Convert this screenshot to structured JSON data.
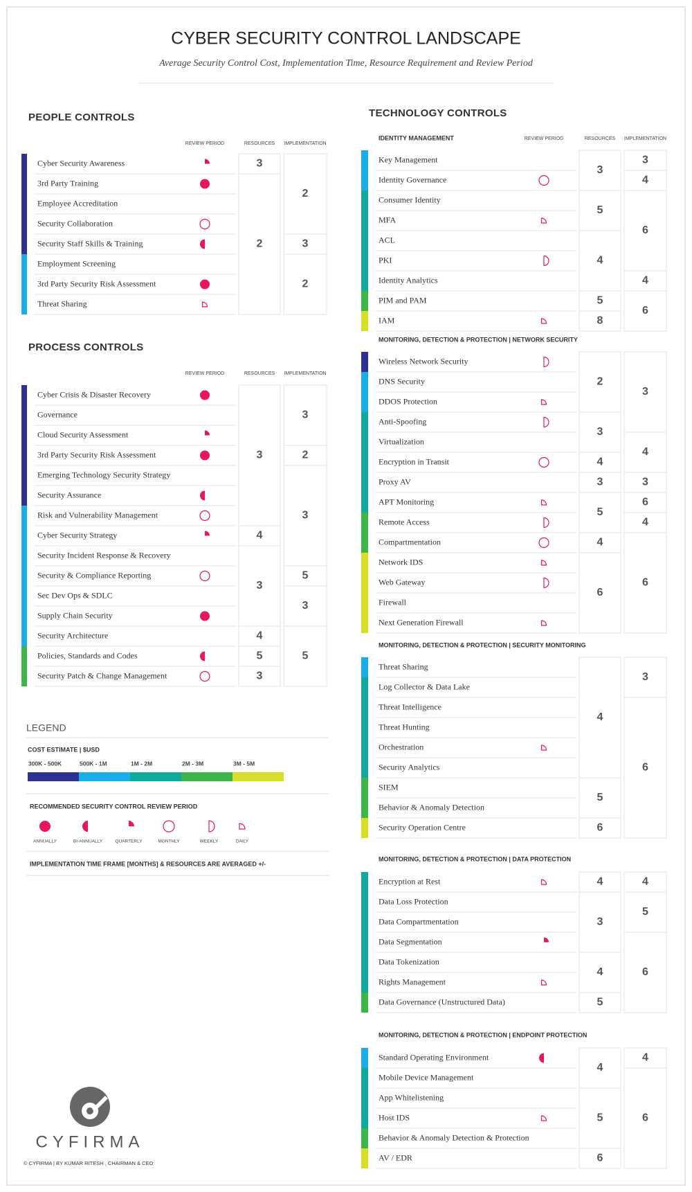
{
  "header": {
    "title": "CYBER SECURITY CONTROL LANDSCAPE",
    "subtitle": "Average Security Control Cost, Implementation Time, Resource Requirement and Review Period"
  },
  "columns": [
    "REVIEW PERIOD",
    "RESOURCES",
    "IMPLEMENTATION"
  ],
  "review_color": "#e8175d",
  "people": {
    "title": "PEOPLE CONTROLS",
    "rows": [
      {
        "label": "Cyber Security Awareness",
        "cost": 0,
        "review": 2
      },
      {
        "label": "3rd Party Training",
        "cost": 0,
        "review": 0
      },
      {
        "label": "Employee Accreditation",
        "cost": 0,
        "review": null
      },
      {
        "label": "Security Collaboration",
        "cost": 0,
        "review": 3
      },
      {
        "label": "Security Staff Skills & Training",
        "cost": 0,
        "review": 1
      },
      {
        "label": "Employment Screening",
        "cost": 1,
        "review": null
      },
      {
        "label": "3rd Party Security Risk Assessment",
        "cost": 1,
        "review": 0
      },
      {
        "label": "Threat Sharing",
        "cost": 1,
        "review": 5
      }
    ],
    "resources": [
      {
        "value": 3,
        "span": 1
      },
      {
        "value": 2,
        "span": 7
      }
    ],
    "implementation": [
      {
        "value": 2,
        "span": 4
      },
      {
        "value": 3,
        "span": 1
      },
      {
        "value": 2,
        "span": 3
      }
    ]
  },
  "process": {
    "title": "PROCESS CONTROLS",
    "rows": [
      {
        "label": "Cyber Crisis & Disaster Recovery",
        "cost": 0,
        "review": 0
      },
      {
        "label": "Governance",
        "cost": 0,
        "review": null
      },
      {
        "label": "Cloud Security Assessment",
        "cost": 0,
        "review": 2
      },
      {
        "label": "3rd Party Security Risk Assessment",
        "cost": 0,
        "review": 0
      },
      {
        "label": "Emerging Technology Security Strategy",
        "cost": 0,
        "review": null
      },
      {
        "label": "Security Assurance",
        "cost": 0,
        "review": 1
      },
      {
        "label": "Risk and Vulnerability Management",
        "cost": 1,
        "review": 3
      },
      {
        "label": "Cyber Security Strategy",
        "cost": 1,
        "review": 2
      },
      {
        "label": "Security Incident Response & Recovery",
        "cost": 1,
        "review": null
      },
      {
        "label": "Security & Compliance Reporting",
        "cost": 1,
        "review": 3
      },
      {
        "label": "Sec Dev Ops & SDLC",
        "cost": 1,
        "review": null
      },
      {
        "label": "Supply Chain Security",
        "cost": 1,
        "review": 0
      },
      {
        "label": "Security Architecture",
        "cost": 1,
        "review": null
      },
      {
        "label": "Policies, Standards and Codes",
        "cost": 3,
        "review": 1
      },
      {
        "label": "Security Patch & Change Management",
        "cost": 3,
        "review": 3
      }
    ],
    "resources": [
      {
        "value": 3,
        "span": 7
      },
      {
        "value": 4,
        "span": 1
      },
      {
        "value": 3,
        "span": 4
      },
      {
        "value": 4,
        "span": 1
      },
      {
        "value": 5,
        "span": 1
      },
      {
        "value": 3,
        "span": 1
      }
    ],
    "implementation": [
      {
        "value": 3,
        "span": 3
      },
      {
        "value": 2,
        "span": 1
      },
      {
        "value": 3,
        "span": 5
      },
      {
        "value": 5,
        "span": 1
      },
      {
        "value": 3,
        "span": 2
      },
      {
        "value": 5,
        "span": 3
      }
    ]
  },
  "technology": {
    "title": "TECHNOLOGY CONTROLS",
    "sections": [
      {
        "title": "IDENTITY MANAGEMENT",
        "rows": [
          {
            "label": "Key Management",
            "cost": 1,
            "review": null
          },
          {
            "label": "Identity Governance",
            "cost": 1,
            "review": 3
          },
          {
            "label": "Consumer Identity",
            "cost": 2,
            "review": null
          },
          {
            "label": "MFA",
            "cost": 2,
            "review": 5
          },
          {
            "label": "ACL",
            "cost": 2,
            "review": null
          },
          {
            "label": "PKI",
            "cost": 2,
            "review": 4
          },
          {
            "label": "Identity Analytics",
            "cost": 2,
            "review": null
          },
          {
            "label": "PIM and PAM",
            "cost": 3,
            "review": null
          },
          {
            "label": "IAM",
            "cost": 4,
            "review": 5
          }
        ],
        "resources": [
          {
            "value": 3,
            "span": 2
          },
          {
            "value": 5,
            "span": 2
          },
          {
            "value": 4,
            "span": 3
          },
          {
            "value": 5,
            "span": 1
          },
          {
            "value": 8,
            "span": 1
          }
        ],
        "implementation": [
          {
            "value": 3,
            "span": 1
          },
          {
            "value": 4,
            "span": 1
          },
          {
            "value": 6,
            "span": 4
          },
          {
            "value": 4,
            "span": 1
          },
          {
            "value": 6,
            "span": 2
          }
        ]
      },
      {
        "title": "MONITORING, DETECTION & PROTECTION  |  NETWORK SECURITY",
        "rows": [
          {
            "label": "Wireless Network Security",
            "cost": 0,
            "review": 4
          },
          {
            "label": "DNS Security",
            "cost": 1,
            "review": null
          },
          {
            "label": "DDOS Protection",
            "cost": 1,
            "review": 5
          },
          {
            "label": "Anti-Spoofing",
            "cost": 2,
            "review": 4
          },
          {
            "label": "Virtualization",
            "cost": 2,
            "review": null
          },
          {
            "label": "Encryption in Transit",
            "cost": 2,
            "review": 3
          },
          {
            "label": "Proxy AV",
            "cost": 2,
            "review": null
          },
          {
            "label": "APT Monitoring",
            "cost": 2,
            "review": 5
          },
          {
            "label": "Remote Access",
            "cost": 3,
            "review": 4
          },
          {
            "label": "Compartmentation",
            "cost": 3,
            "review": 3
          },
          {
            "label": "Network IDS",
            "cost": 4,
            "review": 5
          },
          {
            "label": "Web Gateway",
            "cost": 4,
            "review": 4
          },
          {
            "label": "Firewall",
            "cost": 4,
            "review": null
          },
          {
            "label": "Next Generation Firewall",
            "cost": 4,
            "review": 5
          }
        ],
        "resources": [
          {
            "value": 2,
            "span": 3
          },
          {
            "value": 3,
            "span": 2
          },
          {
            "value": 4,
            "span": 1
          },
          {
            "value": 3,
            "span": 1
          },
          {
            "value": 5,
            "span": 2
          },
          {
            "value": 4,
            "span": 1
          },
          {
            "value": 6,
            "span": 4
          }
        ],
        "implementation": [
          {
            "value": 3,
            "span": 4
          },
          {
            "value": 4,
            "span": 2
          },
          {
            "value": 3,
            "span": 1
          },
          {
            "value": 6,
            "span": 1
          },
          {
            "value": 4,
            "span": 1
          },
          {
            "value": 6,
            "span": 5
          }
        ]
      },
      {
        "title": "MONITORING, DETECTION & PROTECTION  |  SECURITY MONITORING",
        "rows": [
          {
            "label": "Threat Sharing",
            "cost": 1,
            "review": null
          },
          {
            "label": "Log Collector & Data Lake",
            "cost": 2,
            "review": null
          },
          {
            "label": "Threat Intelligence",
            "cost": 2,
            "review": null
          },
          {
            "label": "Threat Hunting",
            "cost": 2,
            "review": null
          },
          {
            "label": "Orchestration",
            "cost": 2,
            "review": 5
          },
          {
            "label": "Security Analytics",
            "cost": 2,
            "review": null
          },
          {
            "label": "SIEM",
            "cost": 3,
            "review": null
          },
          {
            "label": "Behavior & Anomaly Detection",
            "cost": 3,
            "review": null
          },
          {
            "label": "Security Operation Centre",
            "cost": 4,
            "review": null
          }
        ],
        "resources": [
          {
            "value": 4,
            "span": 6
          },
          {
            "value": 5,
            "span": 2
          },
          {
            "value": 6,
            "span": 1
          }
        ],
        "implementation": [
          {
            "value": 3,
            "span": 2
          },
          {
            "value": 6,
            "span": 7
          }
        ]
      },
      {
        "title": "MONITORING, DETECTION & PROTECTION  |  DATA PROTECTION",
        "rows": [
          {
            "label": "Encryption at Rest",
            "cost": 2,
            "review": 5
          },
          {
            "label": "Data Loss Protection",
            "cost": 2,
            "review": null
          },
          {
            "label": "Data Compartmentation",
            "cost": 2,
            "review": null
          },
          {
            "label": "Data Segmentation",
            "cost": 2,
            "review": 2
          },
          {
            "label": "Data Tokenization",
            "cost": 2,
            "review": null
          },
          {
            "label": "Rights Management",
            "cost": 2,
            "review": 5
          },
          {
            "label": "Data Governance (Unstructured Data)",
            "cost": 3,
            "review": null
          }
        ],
        "resources": [
          {
            "value": 4,
            "span": 1
          },
          {
            "value": 3,
            "span": 3
          },
          {
            "value": 4,
            "span": 2
          },
          {
            "value": 5,
            "span": 1
          }
        ],
        "implementation": [
          {
            "value": 4,
            "span": 1
          },
          {
            "value": 5,
            "span": 2
          },
          {
            "value": 6,
            "span": 4
          }
        ]
      },
      {
        "title": "MONITORING, DETECTION & PROTECTION  |  ENDPOINT PROTECTION",
        "rows": [
          {
            "label": "Standard Operating Environment",
            "cost": 1,
            "review": 1
          },
          {
            "label": "Mobile Device Management",
            "cost": 2,
            "review": null
          },
          {
            "label": "App Whitelistening",
            "cost": 2,
            "review": null
          },
          {
            "label": "Host IDS",
            "cost": 2,
            "review": 5
          },
          {
            "label": "Behavior & Anomaly Detection & Protection",
            "cost": 3,
            "review": null
          },
          {
            "label": "AV / EDR",
            "cost": 4,
            "review": null
          }
        ],
        "resources": [
          {
            "value": 4,
            "span": 2
          },
          {
            "value": 5,
            "span": 3
          },
          {
            "value": 6,
            "span": 1
          }
        ],
        "implementation": [
          {
            "value": 4,
            "span": 1
          },
          {
            "value": 6,
            "span": 5
          }
        ]
      }
    ]
  },
  "legend": {
    "title": "LEGEND",
    "cost_title": "COST ESTIMATE | $USD",
    "costs": [
      {
        "label": "300K - 500K",
        "color": "#2e3192"
      },
      {
        "label": "500K - 1M",
        "color": "#1aaee8"
      },
      {
        "label": "1M - 2M",
        "color": "#13a89e"
      },
      {
        "label": "2M - 3M",
        "color": "#3db549"
      },
      {
        "label": "3M - 5M",
        "color": "#d4df26"
      }
    ],
    "review_title": "RECOMMENDED SECURITY CONTROL REVIEW PERIOD",
    "periods": [
      "ANNUALLY",
      "BI-ANNUALLY",
      "QUARTERLY",
      "MONTHLY",
      "WEEKLY",
      "DAILY"
    ],
    "note": "IMPLEMENTATION TIME FRAME [MONTHS] & RESOURCES ARE AVERAGED +/-"
  },
  "brand": {
    "name": "CYFIRMA",
    "footer": "© CYFIRMA | BY KUMAR RITESH , CHAIRMAN & CEO"
  }
}
